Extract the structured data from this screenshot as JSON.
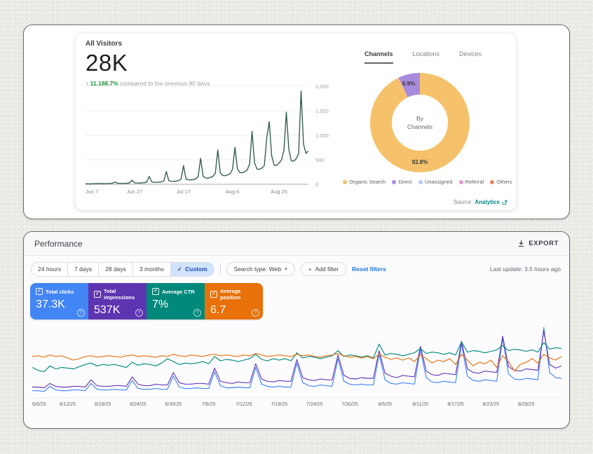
{
  "icons": {
    "up_arrow": "↑",
    "check": "✓",
    "chevron_down": "▾",
    "plus": "+",
    "help": "?"
  },
  "visitors": {
    "title": "All Visitors",
    "value": "28K",
    "delta_percent": "11,188.7%",
    "delta_caption": " compared to the previous 90 days",
    "source_prefix": "Source:",
    "source_link": "Analytics"
  },
  "donut": {
    "tabs": [
      "Channels",
      "Locations",
      "Devices"
    ],
    "center_line1": "By",
    "center_line2": "Channels",
    "major_label": "92.8%",
    "minor_label": "6.9%",
    "legend": [
      {
        "label": "Organic Search",
        "color": "#f5c26b"
      },
      {
        "label": "Direct",
        "color": "#a78bdc"
      },
      {
        "label": "Unassigned",
        "color": "#aecbfa"
      },
      {
        "label": "Referral",
        "color": "#e897cf"
      },
      {
        "label": "Others",
        "color": "#ef8566"
      }
    ]
  },
  "performance": {
    "title": "Performance",
    "export_label": "EXPORT",
    "ranges": [
      "24 hours",
      "7 days",
      "28 days",
      "3 months",
      "Custom"
    ],
    "active_range": "Custom",
    "search_type_label": "Search type: Web",
    "add_filter_label": "Add filter",
    "reset_label": "Reset filters",
    "last_update": "Last update: 3.5 hours ago",
    "cards": [
      {
        "label": "Total clicks",
        "value": "37.3K",
        "color": "#4285f4"
      },
      {
        "label": "Total impressions",
        "value": "537K",
        "color": "#5e35b1"
      },
      {
        "label": "Average CTR",
        "value": "7%",
        "color": "#00897b"
      },
      {
        "label": "Average position",
        "value": "6.7",
        "color": "#e8710a"
      }
    ]
  },
  "chart_data": [
    {
      "id": "visitors",
      "type": "line",
      "title": "All Visitors",
      "color": "#35604f",
      "ylim": [
        0,
        2000
      ],
      "grid_values": [
        0,
        500,
        1000,
        1500,
        2000
      ],
      "y_tick_labels": [
        "0",
        "500",
        "1,000",
        "1,500",
        "2,000"
      ],
      "x_ticks": [
        {
          "label": "Jun 7",
          "day": 0
        },
        {
          "label": "Jun 27",
          "day": 20
        },
        {
          "label": "Jul 17",
          "day": 40
        },
        {
          "label": "Aug 6",
          "day": 60
        },
        {
          "label": "Aug 25",
          "day": 79
        }
      ],
      "total_days": 91,
      "values": [
        10,
        8,
        9,
        11,
        10,
        14,
        12,
        13,
        12,
        14,
        16,
        20,
        45,
        22,
        18,
        17,
        19,
        22,
        28,
        85,
        30,
        26,
        25,
        28,
        32,
        45,
        160,
        50,
        40,
        38,
        42,
        48,
        70,
        260,
        75,
        60,
        58,
        65,
        75,
        105,
        380,
        110,
        90,
        88,
        95,
        110,
        155,
        530,
        165,
        130,
        125,
        140,
        160,
        225,
        700,
        235,
        180,
        175,
        190,
        215,
        305,
        750,
        315,
        240,
        235,
        255,
        290,
        410,
        1080,
        440,
        310,
        305,
        330,
        380,
        950,
        1280,
        580,
        390,
        385,
        430,
        500,
        690,
        1470,
        720,
        480,
        470,
        520,
        620,
        1900,
        820,
        630,
        680
      ]
    },
    {
      "id": "performance",
      "type": "line",
      "ylim": [
        0,
        100
      ],
      "ylabel": "",
      "x_ticks": [
        {
          "label": "6/6/25",
          "day": 0
        },
        {
          "label": "6/12/25",
          "day": 6
        },
        {
          "label": "6/18/25",
          "day": 12
        },
        {
          "label": "6/24/25",
          "day": 18
        },
        {
          "label": "6/30/25",
          "day": 24
        },
        {
          "label": "7/6/25",
          "day": 30
        },
        {
          "label": "7/12/25",
          "day": 36
        },
        {
          "label": "7/18/25",
          "day": 42
        },
        {
          "label": "7/24/25",
          "day": 48
        },
        {
          "label": "7/30/25",
          "day": 54
        },
        {
          "label": "8/5/25",
          "day": 60
        },
        {
          "label": "8/11/25",
          "day": 66
        },
        {
          "label": "8/17/25",
          "day": 72
        },
        {
          "label": "8/23/25",
          "day": 78
        },
        {
          "label": "8/29/25",
          "day": 84
        }
      ],
      "total_days": 90,
      "series": [
        {
          "name": "Total clicks",
          "color": "#4285f4",
          "values": [
            8,
            8,
            7,
            14,
            9,
            8,
            8,
            9,
            9,
            8,
            18,
            10,
            9,
            9,
            10,
            9,
            9,
            22,
            11,
            10,
            10,
            11,
            10,
            10,
            28,
            13,
            11,
            11,
            12,
            11,
            11,
            34,
            15,
            12,
            12,
            13,
            12,
            12,
            40,
            17,
            14,
            13,
            14,
            13,
            13,
            46,
            19,
            15,
            14,
            16,
            15,
            14,
            52,
            21,
            17,
            16,
            17,
            16,
            16,
            58,
            23,
            18,
            17,
            19,
            18,
            17,
            64,
            26,
            20,
            19,
            21,
            20,
            19,
            72,
            28,
            22,
            21,
            23,
            22,
            21,
            80,
            31,
            24,
            23,
            25,
            24,
            23,
            95,
            33,
            26,
            25
          ]
        },
        {
          "name": "Total impressions",
          "color": "#673ab7",
          "values": [
            13,
            13,
            12,
            18,
            14,
            13,
            13,
            14,
            14,
            13,
            23,
            15,
            14,
            14,
            15,
            15,
            14,
            27,
            17,
            15,
            15,
            17,
            16,
            16,
            33,
            19,
            17,
            17,
            18,
            18,
            17,
            39,
            21,
            19,
            18,
            20,
            19,
            19,
            45,
            24,
            21,
            20,
            22,
            21,
            21,
            51,
            26,
            23,
            22,
            24,
            23,
            23,
            57,
            29,
            25,
            24,
            26,
            25,
            25,
            63,
            32,
            28,
            26,
            29,
            28,
            27,
            69,
            35,
            30,
            29,
            32,
            31,
            30,
            76,
            38,
            33,
            32,
            35,
            34,
            33,
            83,
            41,
            36,
            35,
            38,
            37,
            36,
            90,
            44,
            39,
            42
          ]
        },
        {
          "name": "Average CTR",
          "color": "#00897b",
          "values": [
            40,
            36,
            34,
            42,
            38,
            40,
            39,
            38,
            41,
            44,
            46,
            42,
            44,
            43,
            44,
            42,
            40,
            47,
            43,
            45,
            44,
            42,
            46,
            52,
            48,
            44,
            46,
            45,
            46,
            48,
            45,
            55,
            49,
            51,
            50,
            48,
            50,
            52,
            58,
            51,
            49,
            52,
            50,
            52,
            49,
            60,
            53,
            55,
            54,
            52,
            54,
            56,
            63,
            55,
            57,
            56,
            54,
            56,
            53,
            72,
            57,
            59,
            58,
            56,
            58,
            60,
            66,
            59,
            61,
            60,
            58,
            60,
            57,
            75,
            61,
            63,
            62,
            60,
            62,
            64,
            70,
            63,
            65,
            64,
            62,
            64,
            61,
            74,
            65,
            67,
            66
          ]
        },
        {
          "name": "Average position",
          "color": "#e8710a",
          "values": [
            55,
            56,
            54,
            57,
            55,
            56,
            53,
            50,
            52,
            55,
            56,
            54,
            55,
            56,
            55,
            54,
            56,
            57,
            55,
            56,
            55,
            54,
            56,
            55,
            58,
            56,
            55,
            57,
            56,
            55,
            57,
            58,
            56,
            57,
            56,
            55,
            57,
            56,
            59,
            57,
            55,
            56,
            57,
            56,
            55,
            58,
            56,
            57,
            55,
            54,
            56,
            57,
            59,
            56,
            54,
            55,
            53,
            55,
            52,
            58,
            54,
            51,
            53,
            50,
            53,
            48,
            57,
            52,
            46,
            50,
            48,
            52,
            44,
            58,
            50,
            42,
            47,
            45,
            50,
            40,
            56,
            48,
            35,
            44,
            47,
            52,
            46,
            58,
            53,
            50,
            55
          ]
        }
      ]
    },
    {
      "id": "channels-donut",
      "type": "pie",
      "center_label": "By Channels",
      "slices": [
        {
          "label": "Organic Search",
          "pct": 92.8,
          "color": "#f5c26b"
        },
        {
          "label": "Unassigned",
          "pct": 0.1,
          "color": "#aecbfa"
        },
        {
          "label": "Referral",
          "pct": 0.1,
          "color": "#e897cf"
        },
        {
          "label": "Others",
          "pct": 0.1,
          "color": "#ef8566"
        },
        {
          "label": "Direct",
          "pct": 6.9,
          "color": "#a78bdc"
        }
      ]
    }
  ]
}
